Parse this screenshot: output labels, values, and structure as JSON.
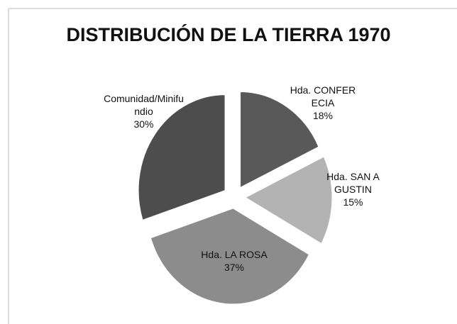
{
  "chart_data": {
    "type": "pie",
    "title": "DISTRIBUCIÓN DE LA TIERRA 1970",
    "categories": [
      "Hda. CONFERECIA",
      "Hda. SAN AGUSTIN",
      "Hda. LA ROSA",
      "Comunidad/Minifundio"
    ],
    "values": [
      18,
      15,
      37,
      30
    ],
    "value_labels": [
      "18%",
      "15%",
      "37%",
      "30%"
    ],
    "colors": [
      "#595959",
      "#b3b3b3",
      "#8c8c8c",
      "#4d4d4d"
    ]
  }
}
